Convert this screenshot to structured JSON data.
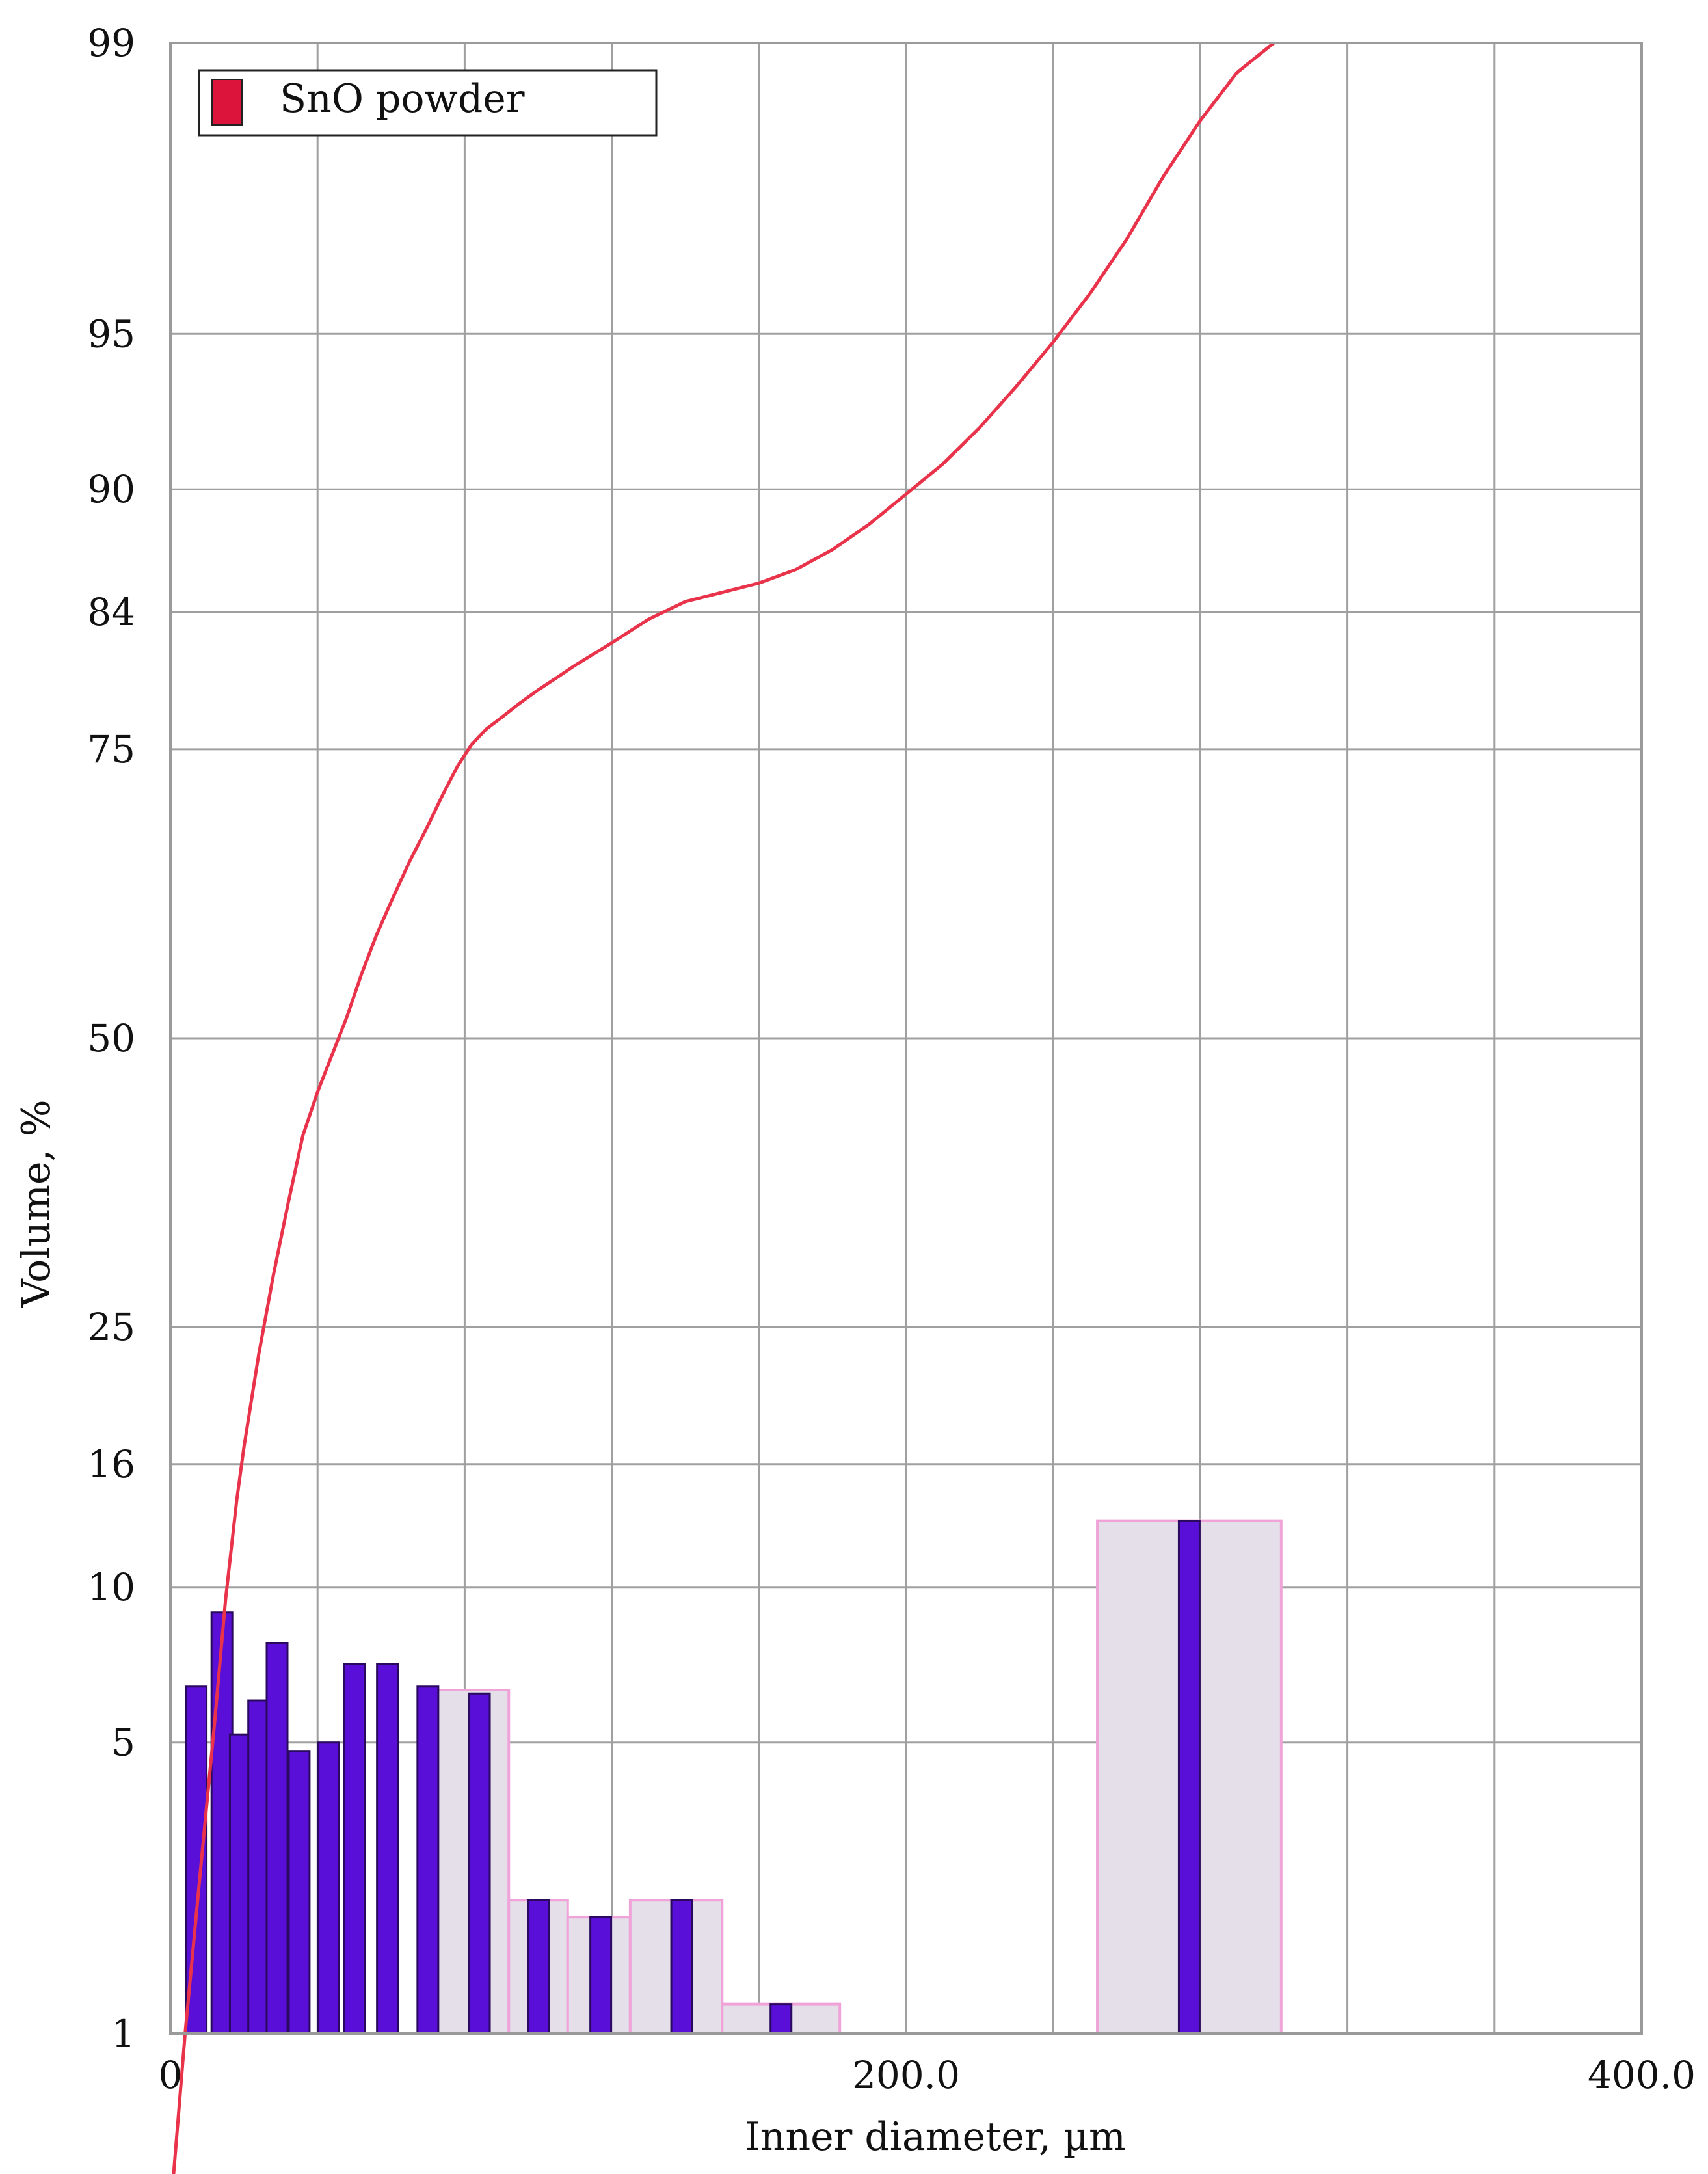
{
  "chart_data": {
    "type": "bar",
    "xlabel": "Inner diameter, µm",
    "ylabel": "Volume, %",
    "xlim": [
      0,
      400
    ],
    "x_tick_labels": [
      "0",
      "200.0",
      "400.0"
    ],
    "y_ticks": [
      1,
      5,
      10,
      16,
      25,
      50,
      75,
      84,
      90,
      95,
      99
    ],
    "y_tick_labels": [
      "1",
      "5",
      "10",
      "16",
      "25",
      "50",
      "75",
      "84",
      "90",
      "95",
      "99"
    ],
    "y_scale": "probability",
    "grid": true,
    "legend_position": "top-left",
    "legend": [
      {
        "label": "SnO powder",
        "color": "#dc143c"
      }
    ],
    "colors": {
      "cumulative_line": "#e8334a",
      "bar_fill": "#5a0fd8",
      "bar_outline": "#2a0a5e",
      "bin_fill": "#e4dfe8",
      "bin_outline": "#f0a3d8",
      "grid": "#a0a0a0"
    },
    "bins": [
      {
        "x0": 70,
        "x1": 92,
        "value": 6.4
      },
      {
        "x0": 92,
        "x1": 108,
        "value": 2.2
      },
      {
        "x0": 108,
        "x1": 125,
        "value": 2.0
      },
      {
        "x0": 125,
        "x1": 150,
        "value": 2.2
      },
      {
        "x0": 150,
        "x1": 165,
        "value": 1.2
      },
      {
        "x0": 165,
        "x1": 182,
        "value": 1.2
      },
      {
        "x0": 252,
        "x1": 302,
        "value": 13.0
      }
    ],
    "bars": [
      {
        "x": 7,
        "value": 6.5
      },
      {
        "x": 14,
        "value": 9.0
      },
      {
        "x": 19,
        "value": 5.2
      },
      {
        "x": 24,
        "value": 6.1
      },
      {
        "x": 29,
        "value": 7.9
      },
      {
        "x": 35,
        "value": 4.8
      },
      {
        "x": 43,
        "value": 5.0
      },
      {
        "x": 50,
        "value": 7.2
      },
      {
        "x": 59,
        "value": 7.2
      },
      {
        "x": 70,
        "value": 6.5
      },
      {
        "x": 84,
        "value": 6.3
      },
      {
        "x": 100,
        "value": 2.2
      },
      {
        "x": 117,
        "value": 2.0
      },
      {
        "x": 139,
        "value": 2.2
      },
      {
        "x": 166,
        "value": 1.2
      },
      {
        "x": 277,
        "value": 13.0
      }
    ],
    "series": [
      {
        "type": "line",
        "x": [
          0,
          4,
          8,
          12,
          15,
          18,
          20,
          24,
          28,
          32,
          36,
          40,
          44,
          48,
          52,
          56,
          60,
          65,
          70,
          74,
          78,
          82,
          86,
          90,
          95,
          100,
          105,
          110,
          120,
          130,
          140,
          150,
          160,
          170,
          180,
          190,
          200,
          210,
          220,
          230,
          240,
          250,
          260,
          270,
          280,
          290,
          300
        ],
        "y": [
          0.3,
          1.0,
          2.5,
          5.5,
          9.5,
          14.0,
          17.0,
          23.0,
          29.0,
          35.0,
          41.0,
          45.0,
          48.5,
          52.0,
          56.0,
          59.5,
          62.5,
          66.0,
          69.0,
          71.5,
          73.7,
          75.4,
          76.5,
          77.3,
          78.3,
          79.2,
          80.0,
          80.8,
          82.2,
          83.6,
          84.6,
          85.1,
          85.6,
          86.3,
          87.3,
          88.5,
          89.8,
          91.0,
          92.3,
          93.6,
          94.8,
          95.9,
          96.9,
          97.8,
          98.4,
          98.8,
          99.0
        ]
      }
    ]
  }
}
